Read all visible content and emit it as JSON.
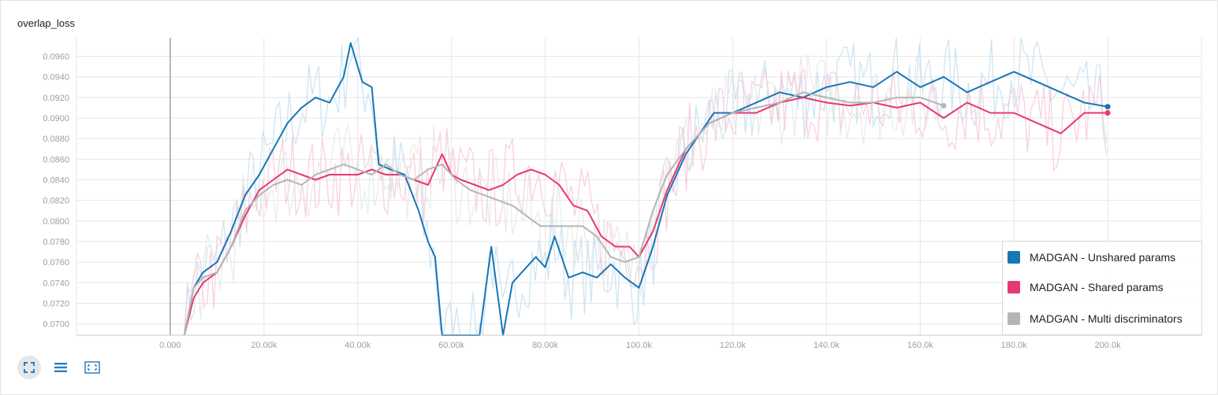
{
  "chart_data": {
    "type": "line",
    "title": "overlap_loss",
    "xlabel": "",
    "ylabel": "",
    "xlim": [
      -20000,
      220000
    ],
    "ylim": [
      0.0689,
      0.0978
    ],
    "x_ticks": [
      0,
      20000,
      40000,
      60000,
      80000,
      100000,
      120000,
      140000,
      160000,
      180000,
      200000
    ],
    "x_tick_labels": [
      "0.000",
      "20.00k",
      "40.00k",
      "60.00k",
      "80.00k",
      "100.0k",
      "120.0k",
      "140.0k",
      "160.0k",
      "180.0k",
      "200.0k"
    ],
    "y_ticks": [
      0.07,
      0.072,
      0.074,
      0.076,
      0.078,
      0.08,
      0.082,
      0.084,
      0.086,
      0.088,
      0.09,
      0.092,
      0.094,
      0.096
    ],
    "y_tick_labels": [
      "0.0700",
      "0.0720",
      "0.0740",
      "0.0760",
      "0.0780",
      "0.0800",
      "0.0820",
      "0.0840",
      "0.0860",
      "0.0880",
      "0.0900",
      "0.0920",
      "0.0940",
      "0.0960"
    ],
    "grid": true,
    "legend_position": "bottom-right",
    "smoothing": "smoothed lines drawn over faint raw values",
    "series": [
      {
        "name": "MADGAN - Unshared params",
        "color": "#1776b6",
        "x": [
          3000,
          5000,
          7000,
          10000,
          13000,
          16000,
          19000,
          22000,
          25000,
          28000,
          31000,
          34000,
          37000,
          38500,
          41000,
          43000,
          44500,
          47000,
          50000,
          53000,
          55000,
          56500,
          58000,
          60000,
          63000,
          66000,
          68500,
          71000,
          73000,
          75000,
          78000,
          80000,
          82000,
          85000,
          88000,
          91000,
          94000,
          97000,
          100000,
          103000,
          106000,
          110000,
          113000,
          116000,
          120000,
          125000,
          130000,
          135000,
          140000,
          145000,
          150000,
          155000,
          160000,
          165000,
          170000,
          175000,
          180000,
          185000,
          190000,
          195000,
          200000
        ],
        "y": [
          0.0689,
          0.0735,
          0.075,
          0.076,
          0.079,
          0.0825,
          0.0845,
          0.087,
          0.0895,
          0.091,
          0.092,
          0.0915,
          0.094,
          0.0973,
          0.0935,
          0.093,
          0.0855,
          0.085,
          0.0845,
          0.081,
          0.078,
          0.0765,
          0.0689,
          0.0689,
          0.0689,
          0.0689,
          0.0775,
          0.0689,
          0.074,
          0.075,
          0.0765,
          0.0755,
          0.0785,
          0.0745,
          0.075,
          0.0745,
          0.0758,
          0.0745,
          0.0735,
          0.0775,
          0.0825,
          0.0865,
          0.0885,
          0.0905,
          0.0905,
          0.0915,
          0.0925,
          0.092,
          0.093,
          0.0935,
          0.093,
          0.0945,
          0.093,
          0.094,
          0.0925,
          0.0935,
          0.0945,
          0.0935,
          0.0925,
          0.0915,
          0.0911
        ]
      },
      {
        "name": "MADGAN - Shared params",
        "color": "#e7386f",
        "x": [
          3000,
          5000,
          7000,
          10000,
          13000,
          16000,
          19000,
          22000,
          25000,
          28000,
          31000,
          34000,
          37000,
          40000,
          43000,
          46000,
          49000,
          52000,
          55000,
          58000,
          60000,
          62000,
          65000,
          68000,
          71000,
          74000,
          77000,
          80000,
          83000,
          86000,
          89000,
          92000,
          95000,
          98000,
          100000,
          103000,
          106000,
          110000,
          115000,
          120000,
          125000,
          130000,
          135000,
          140000,
          145000,
          150000,
          155000,
          160000,
          165000,
          170000,
          175000,
          180000,
          185000,
          190000,
          195000,
          200000
        ],
        "y": [
          0.0689,
          0.0725,
          0.074,
          0.075,
          0.0775,
          0.0805,
          0.083,
          0.084,
          0.085,
          0.0845,
          0.084,
          0.0845,
          0.0845,
          0.0845,
          0.085,
          0.0845,
          0.0845,
          0.084,
          0.0835,
          0.0865,
          0.0845,
          0.084,
          0.0835,
          0.083,
          0.0835,
          0.0845,
          0.085,
          0.0845,
          0.0835,
          0.0815,
          0.081,
          0.0785,
          0.0775,
          0.0775,
          0.0765,
          0.079,
          0.083,
          0.087,
          0.0895,
          0.0905,
          0.0905,
          0.0915,
          0.092,
          0.0915,
          0.0912,
          0.0915,
          0.091,
          0.0915,
          0.09,
          0.0915,
          0.0905,
          0.0905,
          0.0895,
          0.0885,
          0.0905,
          0.0905
        ]
      },
      {
        "name": "MADGAN - Multi discriminators",
        "color": "#b5b5b5",
        "x": [
          3000,
          5000,
          7000,
          10000,
          13000,
          16000,
          19000,
          22000,
          25000,
          28000,
          31000,
          34000,
          37000,
          40000,
          43000,
          46000,
          49000,
          52000,
          55000,
          58000,
          61000,
          64000,
          67000,
          70000,
          73000,
          76000,
          79000,
          82000,
          85000,
          88000,
          91000,
          94000,
          97000,
          100000,
          103000,
          106000,
          110000,
          115000,
          120000,
          125000,
          130000,
          135000,
          140000,
          145000,
          150000,
          155000,
          160000,
          165000
        ],
        "y": [
          0.0689,
          0.0735,
          0.0745,
          0.075,
          0.0775,
          0.081,
          0.0825,
          0.0835,
          0.084,
          0.0835,
          0.0845,
          0.085,
          0.0855,
          0.085,
          0.0845,
          0.0855,
          0.0845,
          0.084,
          0.085,
          0.0855,
          0.084,
          0.083,
          0.0825,
          0.082,
          0.0815,
          0.0805,
          0.0795,
          0.0795,
          0.0795,
          0.0795,
          0.0785,
          0.0765,
          0.076,
          0.0765,
          0.081,
          0.0845,
          0.087,
          0.0895,
          0.0905,
          0.091,
          0.0915,
          0.0925,
          0.092,
          0.0915,
          0.0915,
          0.092,
          0.092,
          0.0912
        ]
      }
    ]
  }
}
